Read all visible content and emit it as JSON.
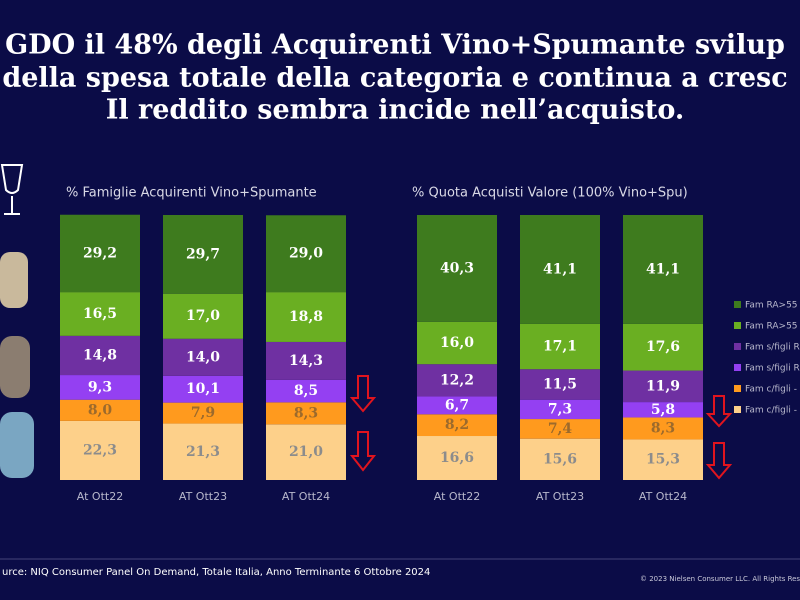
{
  "header": {
    "title_lines": [
      "GDO il 48% degli Acquirenti Vino+Spumante svilup",
      "della spesa totale della categoria e continua a cresc",
      "Il reddito sembra incide nell’acquisto."
    ]
  },
  "chart_data": [
    {
      "type": "bar",
      "stacked": true,
      "title": "% Famiglie Acquirenti Vino+Spumante",
      "categories": [
        "At Ott22",
        "AT Ott23",
        "AT Ott24"
      ],
      "ylim": [
        0,
        100
      ],
      "legend": "none",
      "series": [
        {
          "name": "Fam c/figli -",
          "color": "#fdd08a",
          "label_color": "#8c8c8c",
          "values": [
            22.3,
            21.3,
            21.0
          ],
          "value_labels": [
            "22,3",
            "21,3",
            "21,0"
          ]
        },
        {
          "name": "Fam c/figli -",
          "color": "#ff9a1e",
          "label_color": "#9c6a2c",
          "values": [
            8.0,
            7.9,
            8.3
          ],
          "value_labels": [
            "8,0",
            "7,9",
            "8,3"
          ]
        },
        {
          "name": "Fam s/figli R",
          "color": "#9440f2",
          "label_color": "#ffffff",
          "values": [
            9.3,
            10.1,
            8.5
          ],
          "value_labels": [
            "9,3",
            "10,1",
            "8,5"
          ]
        },
        {
          "name": "Fam s/figli R",
          "color": "#6f30a2",
          "label_color": "#ffffff",
          "values": [
            14.8,
            14.0,
            14.3
          ],
          "value_labels": [
            "14,8",
            "14,0",
            "14,3"
          ]
        },
        {
          "name": "Fam RA>55",
          "color": "#6aaf22",
          "label_color": "#ffffff",
          "values": [
            16.5,
            17.0,
            18.8
          ],
          "value_labels": [
            "16,5",
            "17,0",
            "18,8"
          ]
        },
        {
          "name": "Fam RA>55",
          "color": "#3e7b1e",
          "label_color": "#ffffff",
          "values": [
            29.2,
            29.7,
            29.0
          ],
          "value_labels": [
            "29,2",
            "29,7",
            "29,0"
          ]
        }
      ]
    },
    {
      "type": "bar",
      "stacked": true,
      "title": "% Quota Acquisti Valore (100% Vino+Spu)",
      "categories": [
        "At Ott22",
        "AT Ott23",
        "AT Ott24"
      ],
      "ylim": [
        0,
        100
      ],
      "legend": "right",
      "series": [
        {
          "name": "Fam c/figli -",
          "color": "#fdd08a",
          "label_color": "#8c8c8c",
          "values": [
            16.6,
            15.6,
            15.3
          ],
          "value_labels": [
            "16,6",
            "15,6",
            "15,3"
          ]
        },
        {
          "name": "Fam c/figli -",
          "color": "#ff9a1e",
          "label_color": "#9c6a2c",
          "values": [
            8.2,
            7.4,
            8.3
          ],
          "value_labels": [
            "8,2",
            "7,4",
            "8,3"
          ]
        },
        {
          "name": "Fam s/figli R",
          "color": "#9440f2",
          "label_color": "#ffffff",
          "values": [
            6.7,
            7.3,
            5.8
          ],
          "value_labels": [
            "6,7",
            "7,3",
            "5,8"
          ]
        },
        {
          "name": "Fam s/figli R",
          "color": "#6f30a2",
          "label_color": "#ffffff",
          "values": [
            12.2,
            11.5,
            11.9
          ],
          "value_labels": [
            "12,2",
            "11,5",
            "11,9"
          ]
        },
        {
          "name": "Fam RA>55",
          "color": "#6aaf22",
          "label_color": "#ffffff",
          "values": [
            16.0,
            17.1,
            17.6
          ],
          "value_labels": [
            "16,0",
            "17,1",
            "17,6"
          ]
        },
        {
          "name": "Fam RA>55",
          "color": "#3e7b1e",
          "label_color": "#ffffff",
          "values": [
            40.3,
            41.1,
            41.1
          ],
          "value_labels": [
            "40,3",
            "41,1",
            "41,1"
          ]
        }
      ]
    }
  ],
  "footer": {
    "source": "urce: NIQ Consumer Panel On Demand, Totale Italia, Anno Terminante 6 Ottobre 2024",
    "copyright": "© 2023 Nielsen Consumer LLC. All Rights Res"
  }
}
